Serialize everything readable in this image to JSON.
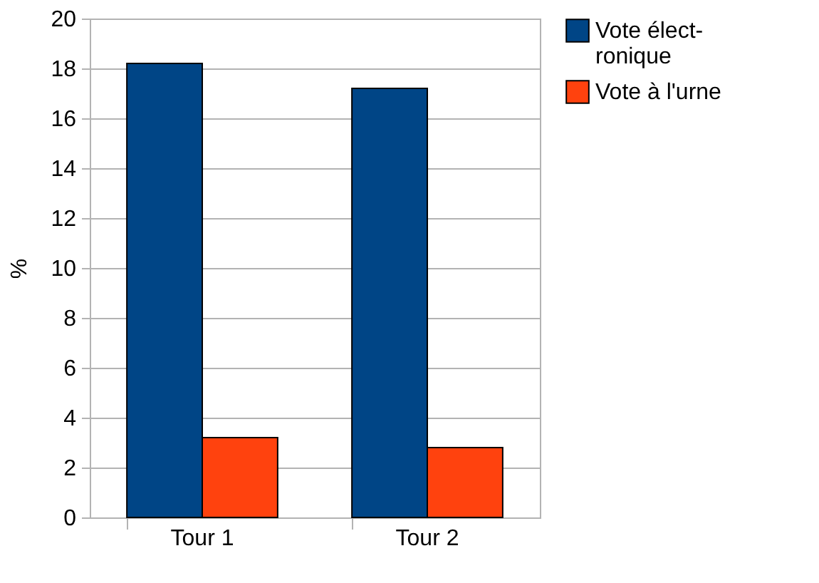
{
  "chart_data": {
    "type": "bar",
    "ylabel": "%",
    "categories": [
      "Tour 1",
      "Tour 2"
    ],
    "series": [
      {
        "name": "Vote élect-\nronique",
        "color": "#004586",
        "values": [
          18.2,
          17.2
        ]
      },
      {
        "name": "Vote à l'urne",
        "color": "#ff420e",
        "values": [
          3.2,
          2.8
        ]
      }
    ],
    "ylim": [
      0,
      20
    ],
    "yticks": [
      0,
      2,
      4,
      6,
      8,
      10,
      12,
      14,
      16,
      18,
      20
    ],
    "grid": "y",
    "legend": "right"
  }
}
